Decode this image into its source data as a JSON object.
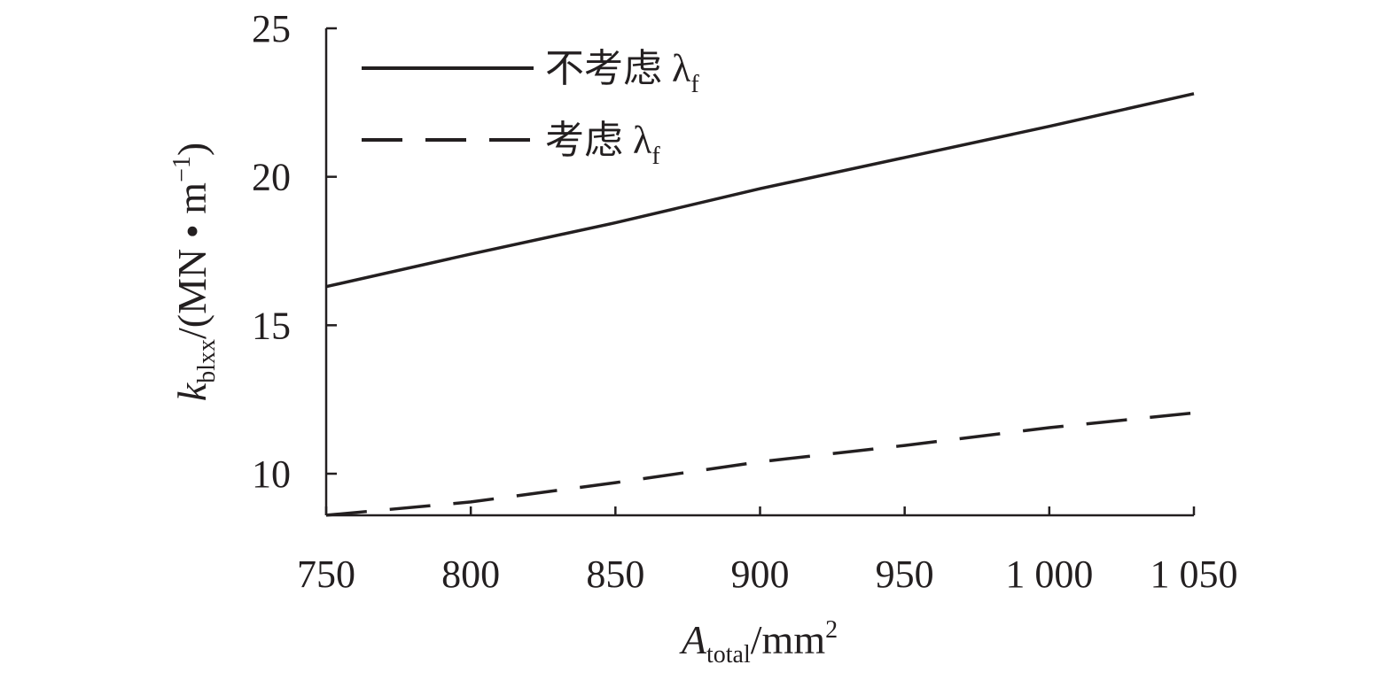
{
  "chart_data": {
    "type": "line",
    "xlabel": {
      "main": "A",
      "sub": "total",
      "unit": "/mm",
      "sup": "2"
    },
    "ylabel": {
      "main": "k",
      "sub": "blxx",
      "unit": "/(MN • m",
      "sup": "−1",
      "close": ")"
    },
    "xlim": [
      750,
      1050
    ],
    "ylim": [
      8.6,
      25
    ],
    "x_ticks": [
      750,
      800,
      850,
      900,
      950,
      1000,
      1050
    ],
    "x_tick_labels": [
      "750",
      "800",
      "850",
      "900",
      "950",
      "1 000",
      "1 050"
    ],
    "y_ticks": [
      10,
      15,
      20,
      25
    ],
    "y_tick_labels": [
      "10",
      "15",
      "20",
      "25"
    ],
    "legend_position": "top-left",
    "series": [
      {
        "name": "不考虑 λ",
        "name_sub": "f",
        "style": "solid",
        "x": [
          750,
          800,
          850,
          900,
          950,
          1000,
          1050
        ],
        "y": [
          16.3,
          17.4,
          18.45,
          19.6,
          20.65,
          21.7,
          22.8
        ]
      },
      {
        "name": "考虑 λ",
        "name_sub": "f",
        "style": "dashed",
        "x": [
          750,
          800,
          850,
          900,
          950,
          1000,
          1050
        ],
        "y": [
          8.6,
          9.05,
          9.7,
          10.4,
          10.95,
          11.55,
          12.05
        ]
      }
    ]
  }
}
